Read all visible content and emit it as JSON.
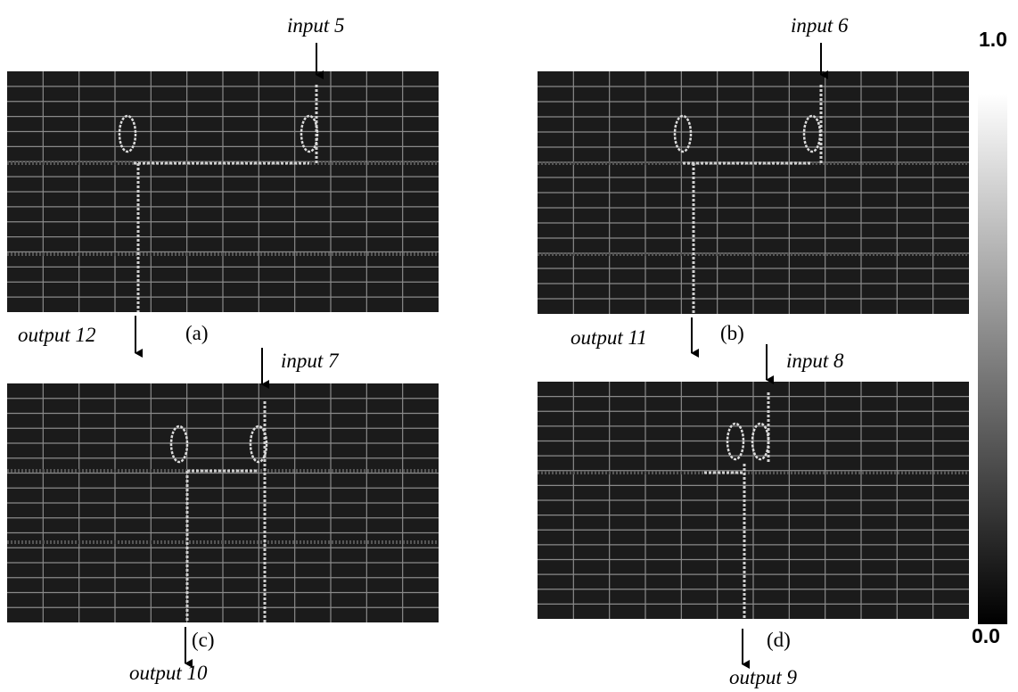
{
  "panels": [
    {
      "label": "(a)",
      "input": "input 5",
      "output": "output 12"
    },
    {
      "label": "(b)",
      "input": "input 6",
      "output": "output 11"
    },
    {
      "label": "(c)",
      "input": "input 7",
      "output": "output 10"
    },
    {
      "label": "(d)",
      "input": "input 8",
      "output": "output 9"
    }
  ],
  "colorbar": {
    "max_label": "1.0",
    "min_label": "0.0"
  }
}
